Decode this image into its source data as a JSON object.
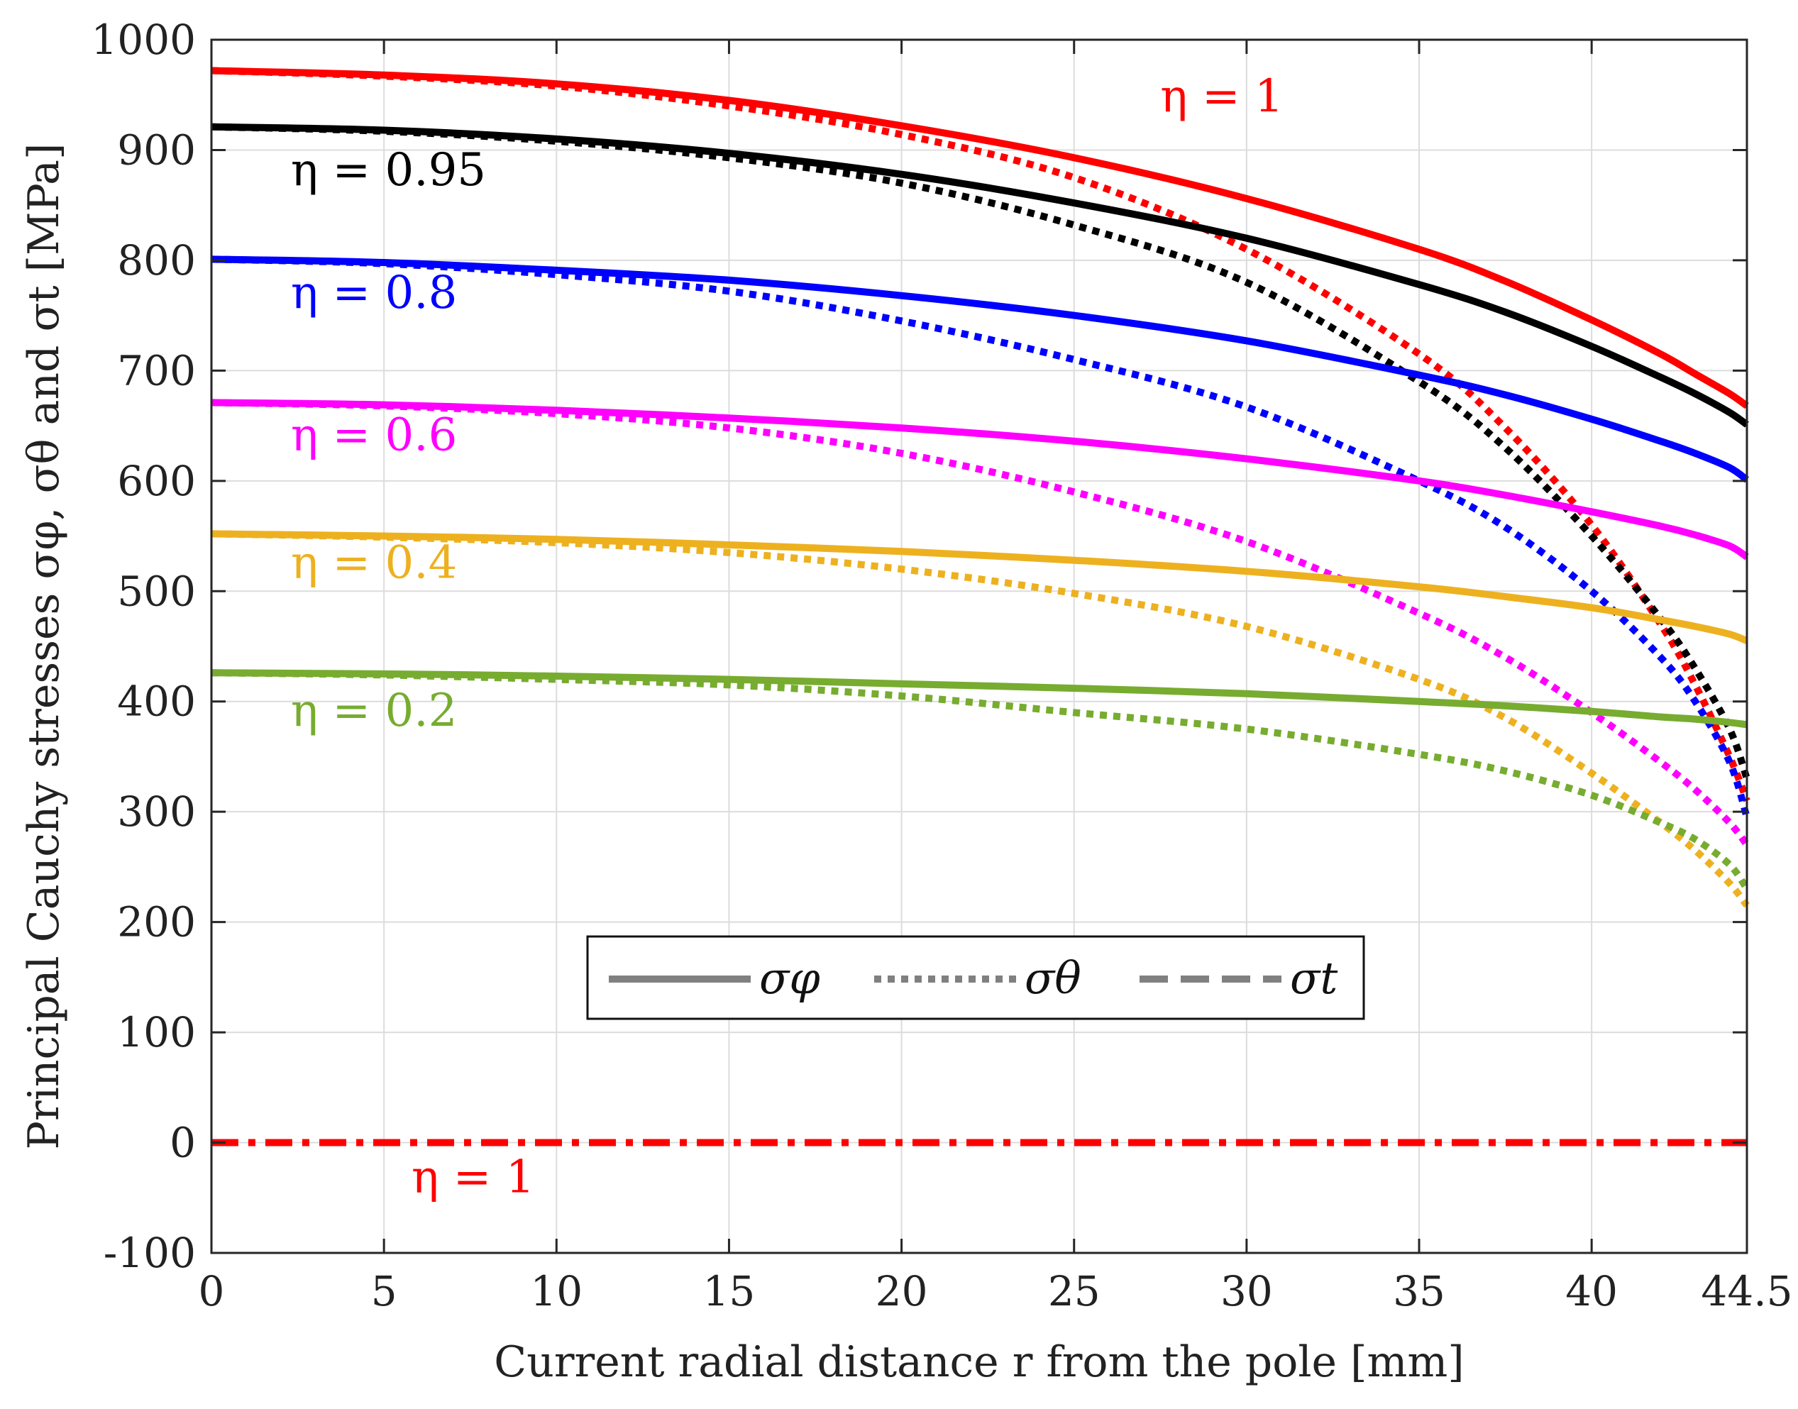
{
  "chart_data": {
    "type": "line",
    "title": "",
    "xlabel": "Current radial distance r from the pole [mm]",
    "ylabel": "Principal Cauchy stresses σφ, σθ and σt [MPa]",
    "xlim": [
      0,
      44.5
    ],
    "ylim": [
      -100,
      1000
    ],
    "grid": true,
    "x_ticks": [
      0,
      5,
      10,
      15,
      20,
      25,
      30,
      35,
      40,
      44.5
    ],
    "x_tick_labels": [
      "0",
      "5",
      "10",
      "15",
      "20",
      "25",
      "30",
      "35",
      "40",
      "44.5"
    ],
    "y_ticks": [
      -100,
      0,
      100,
      200,
      300,
      400,
      500,
      600,
      700,
      800,
      900,
      1000
    ],
    "y_tick_labels": [
      "-100",
      "0",
      "100",
      "200",
      "300",
      "400",
      "500",
      "600",
      "700",
      "800",
      "900",
      "1000"
    ],
    "x": [
      0,
      5,
      10,
      15,
      20,
      25,
      30,
      35,
      37.5,
      40,
      42,
      43,
      44,
      44.5
    ],
    "series": [
      {
        "name": "σφ, η = 1",
        "eta": "η = 1",
        "stress": "sigma_phi",
        "style": "solid",
        "color": "#ff0000",
        "values": [
          972,
          968,
          960,
          945,
          922,
          893,
          856,
          810,
          781,
          746,
          715,
          697,
          679,
          668
        ]
      },
      {
        "name": "σθ, η = 1",
        "eta": "η = 1",
        "stress": "sigma_theta",
        "style": "dotted",
        "color": "#ff0000",
        "values": [
          972,
          967,
          958,
          940,
          914,
          875,
          810,
          715,
          648,
          560,
          470,
          415,
          350,
          310
        ]
      },
      {
        "name": "σφ, η = 0.95",
        "eta": "η = 0.95",
        "stress": "sigma_phi",
        "style": "solid",
        "color": "#000000",
        "values": [
          921,
          918,
          910,
          897,
          878,
          852,
          820,
          778,
          753,
          722,
          694,
          679,
          662,
          651
        ]
      },
      {
        "name": "σθ, η = 0.95",
        "eta": "η = 0.95",
        "stress": "sigma_theta",
        "style": "dotted",
        "color": "#000000",
        "values": [
          921,
          917,
          908,
          893,
          870,
          832,
          780,
          690,
          630,
          550,
          475,
          430,
          375,
          330
        ]
      },
      {
        "name": "σφ, η = 0.8",
        "eta": "η = 0.8",
        "stress": "sigma_phi",
        "style": "solid",
        "color": "#0000ff",
        "values": [
          801,
          798,
          791,
          782,
          768,
          750,
          727,
          696,
          678,
          656,
          636,
          625,
          612,
          601
        ]
      },
      {
        "name": "σθ, η = 0.8",
        "eta": "η = 0.8",
        "stress": "sigma_theta",
        "style": "dotted",
        "color": "#0000ff",
        "values": [
          801,
          797,
          787,
          772,
          745,
          710,
          667,
          600,
          558,
          500,
          440,
          400,
          345,
          295
        ]
      },
      {
        "name": "σφ, η = 0.6",
        "eta": "η = 0.6",
        "stress": "sigma_phi",
        "style": "solid",
        "color": "#ff00ff",
        "values": [
          671,
          669,
          664,
          657,
          648,
          636,
          620,
          600,
          587,
          572,
          559,
          551,
          541,
          531
        ]
      },
      {
        "name": "σθ, η = 0.6",
        "eta": "η = 0.6",
        "stress": "sigma_theta",
        "style": "dotted",
        "color": "#ff00ff",
        "values": [
          671,
          668,
          661,
          648,
          625,
          590,
          545,
          480,
          440,
          390,
          345,
          320,
          290,
          270
        ]
      },
      {
        "name": "σφ, η = 0.4",
        "eta": "η = 0.4",
        "stress": "sigma_phi",
        "style": "solid",
        "color": "#edb120",
        "values": [
          552,
          550,
          547,
          542,
          536,
          528,
          518,
          504,
          495,
          485,
          474,
          468,
          461,
          455
        ]
      },
      {
        "name": "σθ, η = 0.4",
        "eta": "η = 0.4",
        "stress": "sigma_theta",
        "style": "dotted",
        "color": "#edb120",
        "values": [
          552,
          549,
          544,
          535,
          520,
          498,
          468,
          420,
          385,
          335,
          290,
          265,
          235,
          215
        ]
      },
      {
        "name": "σφ, η = 0.2",
        "eta": "η = 0.2",
        "stress": "sigma_phi",
        "style": "solid",
        "color": "#77ac30",
        "values": [
          426,
          425,
          423,
          420,
          416,
          412,
          407,
          400,
          396,
          391,
          386,
          384,
          381,
          379
        ]
      },
      {
        "name": "σθ, η = 0.2",
        "eta": "η = 0.2",
        "stress": "sigma_theta",
        "style": "dotted",
        "color": "#77ac30",
        "values": [
          426,
          424,
          420,
          415,
          405,
          390,
          375,
          352,
          337,
          315,
          290,
          275,
          252,
          230
        ]
      },
      {
        "name": "σt, η = 1",
        "eta": "η = 1",
        "stress": "sigma_t",
        "style": "dashdot",
        "color": "#ff0000",
        "values": [
          0,
          0,
          0,
          0,
          0,
          0,
          0,
          0,
          0,
          0,
          0,
          0,
          0,
          0
        ]
      }
    ],
    "annotations": [
      {
        "text": "η = 1",
        "color": "#ff0000",
        "at": [
          27.5,
          935
        ]
      },
      {
        "text": "η = 0.95",
        "color": "#000000",
        "at": [
          2.3,
          868
        ]
      },
      {
        "text": "η = 0.8",
        "color": "#0000ff",
        "at": [
          2.3,
          757
        ]
      },
      {
        "text": "η = 0.6",
        "color": "#ff00ff",
        "at": [
          2.3,
          628
        ]
      },
      {
        "text": "η = 0.4",
        "color": "#edb120",
        "at": [
          2.3,
          512
        ]
      },
      {
        "text": "η = 0.2",
        "color": "#77ac30",
        "at": [
          2.3,
          378
        ]
      },
      {
        "text": "η = 1",
        "color": "#ff0000",
        "at": [
          5.8,
          -45
        ]
      }
    ],
    "legend": {
      "placement": "lower-center",
      "border": true,
      "entries": [
        {
          "label": "σφ",
          "style": "solid",
          "color": "#808080"
        },
        {
          "label": "σθ",
          "style": "dotted",
          "color": "#808080"
        },
        {
          "label": "σt",
          "style": "dashed",
          "color": "#808080"
        }
      ]
    }
  }
}
